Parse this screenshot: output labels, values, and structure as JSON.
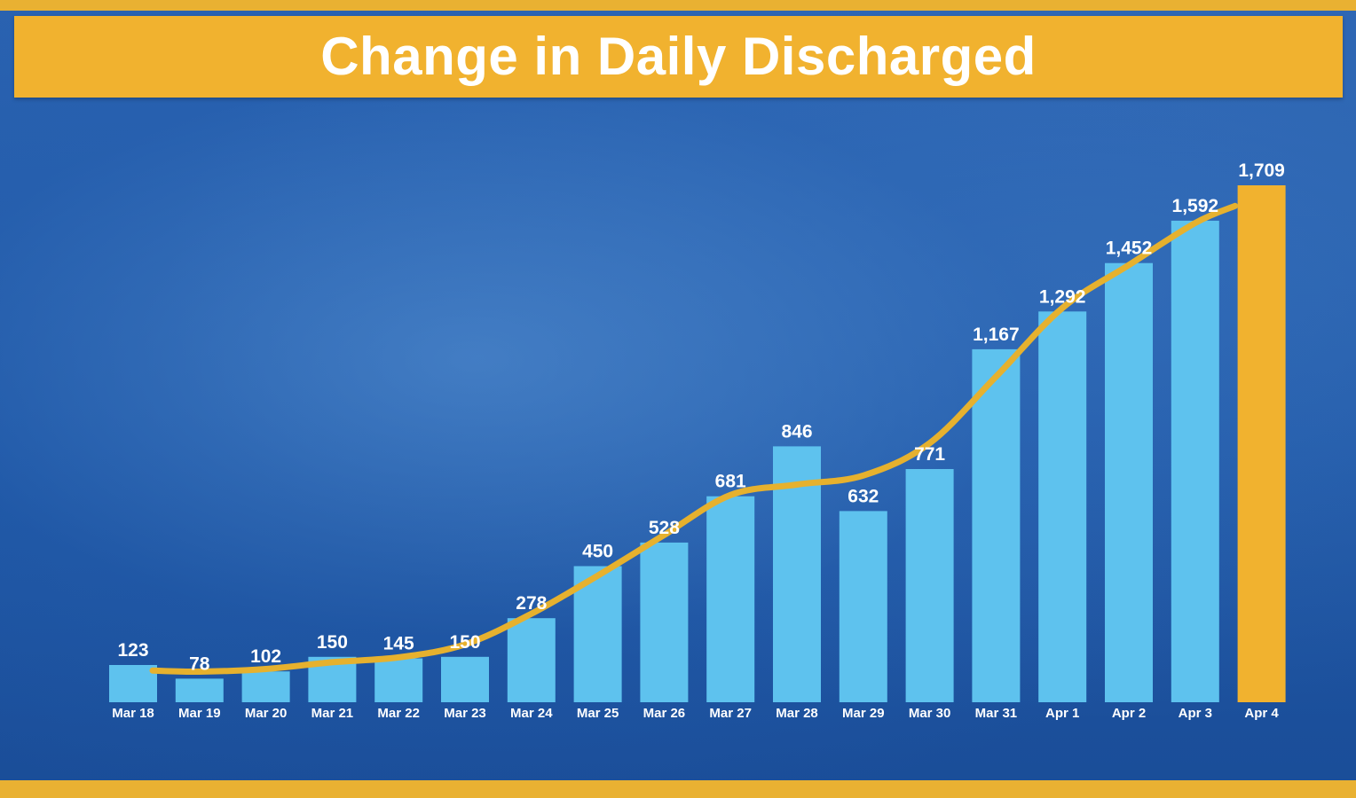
{
  "title": "Change in Daily Discharged",
  "colors": {
    "bar": "#5ec2ee",
    "highlight_bar": "#f1b22f",
    "trend_line": "#e6b12e",
    "banner": "#f1b22f"
  },
  "chart_data": {
    "type": "bar",
    "title": "Change in Daily Discharged",
    "xlabel": "",
    "ylabel": "",
    "categories": [
      "Mar 18",
      "Mar 19",
      "Mar 20",
      "Mar 21",
      "Mar 22",
      "Mar 23",
      "Mar 24",
      "Mar 25",
      "Mar 26",
      "Mar 27",
      "Mar 28",
      "Mar 29",
      "Mar 30",
      "Mar 31",
      "Apr 1",
      "Apr 2",
      "Apr 3",
      "Apr 4"
    ],
    "values": [
      123,
      78,
      102,
      150,
      145,
      150,
      278,
      450,
      528,
      681,
      846,
      632,
      771,
      1167,
      1292,
      1452,
      1592,
      1709
    ],
    "value_labels": [
      "123",
      "78",
      "102",
      "150",
      "145",
      "150",
      "278",
      "450",
      "528",
      "681",
      "846",
      "632",
      "771",
      "1,167",
      "1,292",
      "1,452",
      "1,592",
      "1,709"
    ],
    "highlight_index": 17,
    "trend_line": true,
    "ylim": [
      0,
      1709
    ],
    "grid": false,
    "legend": "none"
  }
}
